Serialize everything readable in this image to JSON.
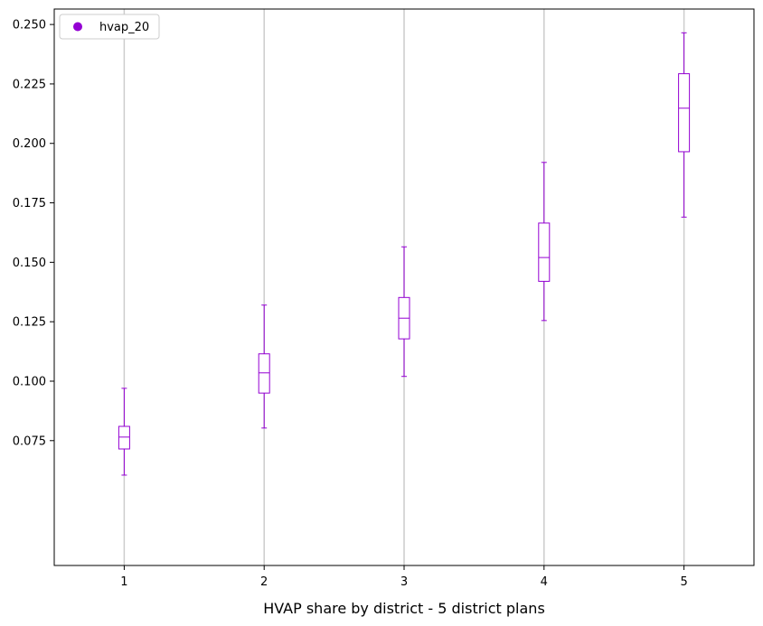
{
  "chart_data": {
    "type": "box",
    "xlabel": "HVAP share by district - 5 district plans",
    "ylabel": "",
    "title": "",
    "categories": [
      "1",
      "2",
      "3",
      "4",
      "5"
    ],
    "ylim": [
      0.0225,
      0.2565
    ],
    "yticks": [
      "0.075",
      "0.100",
      "0.125",
      "0.150",
      "0.175",
      "0.200",
      "0.225",
      "0.250"
    ],
    "grid": "vertical",
    "legend": {
      "position": "top-left",
      "entries": [
        {
          "label": "hvap_20",
          "color": "#9400d3",
          "marker": "circle"
        }
      ]
    },
    "series": [
      {
        "color": "#9400d3",
        "boxes": [
          {
            "category": "1",
            "whisker_low": 0.0605,
            "q1": 0.0715,
            "median": 0.0765,
            "q3": 0.081,
            "whisker_high": 0.097
          },
          {
            "category": "2",
            "whisker_low": 0.0803,
            "q1": 0.095,
            "median": 0.1035,
            "q3": 0.1115,
            "whisker_high": 0.132
          },
          {
            "category": "3",
            "whisker_low": 0.102,
            "q1": 0.1178,
            "median": 0.1265,
            "q3": 0.1352,
            "whisker_high": 0.1565
          },
          {
            "category": "4",
            "whisker_low": 0.1255,
            "q1": 0.142,
            "median": 0.152,
            "q3": 0.1665,
            "whisker_high": 0.192
          },
          {
            "category": "5",
            "whisker_low": 0.169,
            "q1": 0.1965,
            "median": 0.2148,
            "q3": 0.2293,
            "whisker_high": 0.2465
          }
        ]
      }
    ]
  }
}
